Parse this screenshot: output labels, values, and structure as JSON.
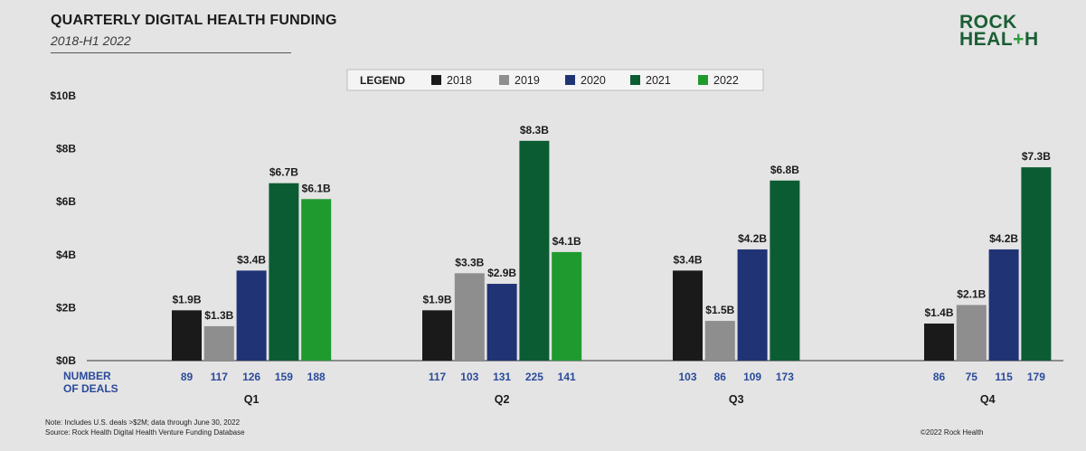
{
  "header": {
    "title": "QUARTERLY DIGITAL HEALTH FUNDING",
    "subtitle": "2018-H1 2022"
  },
  "logo": {
    "line1": "ROCK",
    "line2_a": "HEAL",
    "line2_b": "+",
    "line2_c": "H"
  },
  "footer": {
    "note": "Note: Includes U.S. deals >$2M; data through June 30, 2022",
    "source": "Source: Rock Health Digital Health Venture Funding Database",
    "copyright": "©2022 Rock Health"
  },
  "colors": {
    "2018": "#1a1a1a",
    "2019": "#8e8e8e",
    "2020": "#1f3375",
    "2021": "#0c5c33",
    "2022": "#1f9a2f",
    "deals_text": "#2a4a9a"
  },
  "chart_data": {
    "type": "bar",
    "title": "QUARTERLY DIGITAL HEALTH FUNDING",
    "subtitle": "2018-H1 2022",
    "legend_title": "LEGEND",
    "legend_placement": "top-center",
    "categories": [
      "Q1",
      "Q2",
      "Q3",
      "Q4"
    ],
    "ylim": [
      0,
      10
    ],
    "yticks": [
      {
        "value": 0,
        "label": "$0B"
      },
      {
        "value": 2,
        "label": "$2B"
      },
      {
        "value": 4,
        "label": "$4B"
      },
      {
        "value": 6,
        "label": "$6B"
      },
      {
        "value": 8,
        "label": "$8B"
      },
      {
        "value": 10,
        "label": "$10B"
      }
    ],
    "grid": false,
    "deals_label_line1": "NUMBER",
    "deals_label_line2": "OF DEALS",
    "series": [
      {
        "name": "2018",
        "values": [
          1.9,
          1.9,
          3.4,
          1.4
        ],
        "labels": [
          "$1.9B",
          "$1.9B",
          "$3.4B",
          "$1.4B"
        ],
        "deals": [
          89,
          117,
          103,
          86
        ]
      },
      {
        "name": "2019",
        "values": [
          1.3,
          3.3,
          1.5,
          2.1
        ],
        "labels": [
          "$1.3B",
          "$3.3B",
          "$1.5B",
          "$2.1B"
        ],
        "deals": [
          117,
          103,
          86,
          75
        ]
      },
      {
        "name": "2020",
        "values": [
          3.4,
          2.9,
          4.2,
          4.2
        ],
        "labels": [
          "$3.4B",
          "$2.9B",
          "$4.2B",
          "$4.2B"
        ],
        "deals": [
          126,
          131,
          109,
          115
        ]
      },
      {
        "name": "2021",
        "values": [
          6.7,
          8.3,
          6.8,
          7.3
        ],
        "labels": [
          "$6.7B",
          "$8.3B",
          "$6.8B",
          "$7.3B"
        ],
        "deals": [
          159,
          225,
          173,
          179
        ]
      },
      {
        "name": "2022",
        "values": [
          6.1,
          4.1,
          null,
          null
        ],
        "labels": [
          "$6.1B",
          "$4.1B",
          null,
          null
        ],
        "deals": [
          188,
          141,
          null,
          null
        ]
      }
    ]
  }
}
